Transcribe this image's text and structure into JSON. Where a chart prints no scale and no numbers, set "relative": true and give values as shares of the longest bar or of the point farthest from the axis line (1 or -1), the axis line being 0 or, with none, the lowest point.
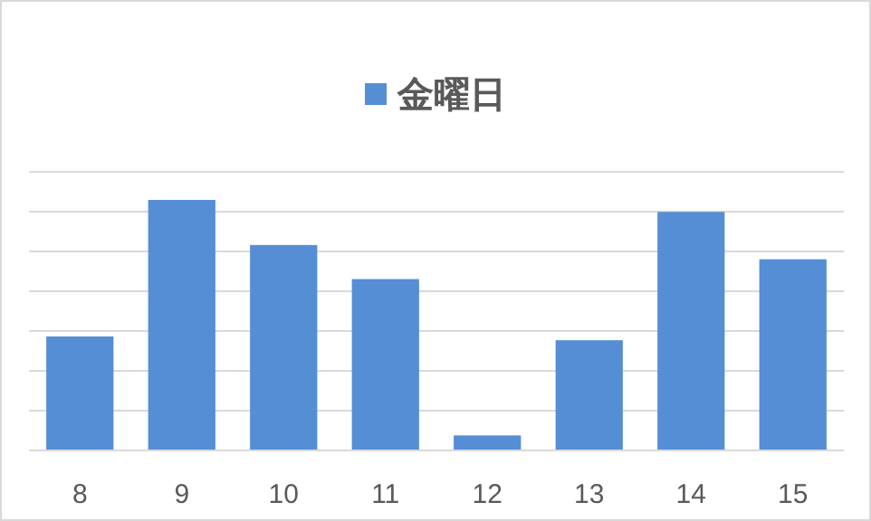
{
  "chart_data": {
    "type": "bar",
    "relative": true,
    "categories": [
      "8",
      "9",
      "10",
      "11",
      "12",
      "13",
      "14",
      "15"
    ],
    "series": [
      {
        "name": "金曜日",
        "color": "#558ed5",
        "values": [
          0.455,
          1,
          0.82,
          0.684,
          0.06,
          0.44,
          0.952,
          0.763
        ]
      }
    ],
    "grid": "y",
    "legend": "top"
  }
}
